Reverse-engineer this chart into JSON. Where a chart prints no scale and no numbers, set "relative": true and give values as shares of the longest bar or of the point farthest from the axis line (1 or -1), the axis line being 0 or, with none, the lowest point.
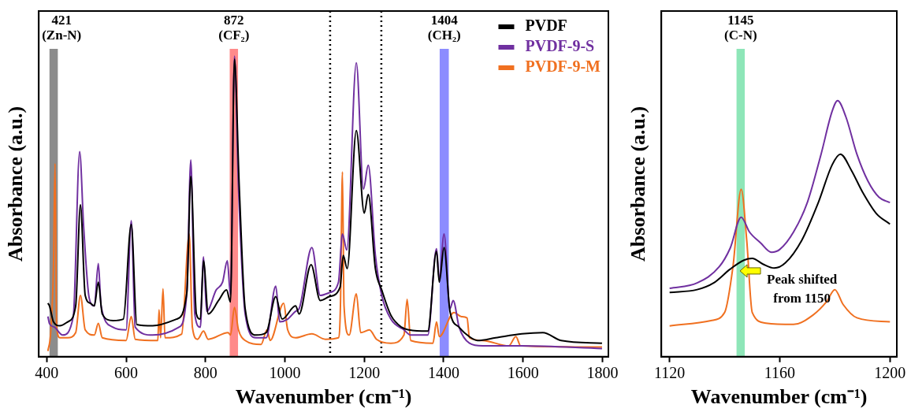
{
  "chart_data": [
    {
      "type": "line",
      "relative": true,
      "xlabel": "Wavenumber (cm⁻¹)",
      "ylabel": "Absorbance (a.u.)",
      "xlim": [
        380,
        1815
      ],
      "xticks": [
        400,
        600,
        800,
        1000,
        1200,
        1400,
        1600,
        1800
      ],
      "legend": "top right",
      "series": [
        {
          "name": "PVDF",
          "color": "#000000",
          "x": [
            403,
            407,
            417,
            433,
            453,
            473,
            485,
            497,
            510,
            520,
            530,
            540,
            567,
            593,
            613,
            627,
            667,
            727,
            753,
            763,
            777,
            787,
            795,
            807,
            833,
            853,
            863,
            873,
            885,
            900,
            927,
            953,
            977,
            993,
            1027,
            1036,
            1066,
            1089,
            1112,
            1139,
            1147,
            1157,
            1180,
            1200,
            1210,
            1228,
            1244,
            1267,
            1294,
            1313,
            1360,
            1382,
            1389,
            1401,
            1416,
            1439,
            1452,
            1485,
            1531,
            1597,
            1650,
            1696,
            1799
          ],
          "values": [
            0.178,
            0.169,
            0.116,
            0.103,
            0.116,
            0.169,
            0.505,
            0.204,
            0.178,
            0.169,
            0.248,
            0.142,
            0.12,
            0.125,
            0.44,
            0.107,
            0.103,
            0.125,
            0.213,
            0.6,
            0.142,
            0.125,
            0.319,
            0.142,
            0.187,
            0.222,
            0.182,
            0.99,
            0.567,
            0.159,
            0.072,
            0.08,
            0.2,
            0.125,
            0.169,
            0.142,
            0.306,
            0.187,
            0.2,
            0.231,
            0.337,
            0.293,
            0.752,
            0.478,
            0.54,
            0.293,
            0.222,
            0.138,
            0.098,
            0.089,
            0.085,
            0.35,
            0.248,
            0.363,
            0.15,
            0.098,
            0.08,
            0.054,
            0.063,
            0.076,
            0.08,
            0.054,
            0.045
          ]
        },
        {
          "name": "PVDF-9-S",
          "color": "#7030a0",
          "x": [
            403,
            407,
            420,
            440,
            467,
            483,
            493,
            507,
            520,
            530,
            537,
            567,
            600,
            613,
            623,
            667,
            733,
            753,
            763,
            773,
            787,
            795,
            803,
            827,
            843,
            855,
            863,
            873,
            883,
            900,
            927,
            953,
            977,
            987,
            1007,
            1027,
            1036,
            1068,
            1089,
            1112,
            1135,
            1145,
            1156,
            1180,
            1198,
            1210,
            1228,
            1244,
            1267,
            1300,
            1317,
            1360,
            1382,
            1389,
            1401,
            1416,
            1424,
            1439,
            1465,
            1498,
            1597,
            1799
          ],
          "values": [
            0.134,
            0.11,
            0.098,
            0.072,
            0.134,
            0.682,
            0.434,
            0.195,
            0.169,
            0.31,
            0.169,
            0.098,
            0.089,
            0.452,
            0.098,
            0.072,
            0.098,
            0.213,
            0.655,
            0.142,
            0.098,
            0.332,
            0.151,
            0.222,
            0.248,
            0.319,
            0.204,
            1.0,
            0.567,
            0.142,
            0.063,
            0.063,
            0.235,
            0.116,
            0.125,
            0.151,
            0.16,
            0.363,
            0.204,
            0.213,
            0.248,
            0.408,
            0.355,
            0.978,
            0.558,
            0.637,
            0.337,
            0.204,
            0.125,
            0.089,
            0.072,
            0.072,
            0.359,
            0.257,
            0.408,
            0.16,
            0.187,
            0.098,
            0.045,
            0.036,
            0.036,
            0.027
          ]
        },
        {
          "name": "PVDF-9-M",
          "color": "#f07020",
          "x": [
            403,
            410,
            417,
            421,
            425,
            433,
            453,
            473,
            485,
            497,
            520,
            530,
            540,
            600,
            613,
            623,
            680,
            683,
            687,
            693,
            698,
            740,
            759,
            767,
            780,
            795,
            807,
            857,
            863,
            873,
            883,
            900,
            940,
            955,
            963,
            997,
            1007,
            1027,
            1068,
            1102,
            1135,
            1140,
            1145,
            1149,
            1162,
            1180,
            1191,
            1213,
            1231,
            1267,
            1300,
            1308,
            1317,
            1373,
            1382,
            1389,
            1426,
            1445,
            1459,
            1465,
            1498,
            1564,
            1582,
            1594,
            1799
          ],
          "values": [
            0.019,
            0.08,
            0.3,
            0.642,
            0.1,
            0.063,
            0.063,
            0.08,
            0.204,
            0.089,
            0.072,
            0.111,
            0.063,
            0.054,
            0.134,
            0.058,
            0.054,
            0.156,
            0.063,
            0.226,
            0.063,
            0.075,
            0.408,
            0.098,
            0.058,
            0.085,
            0.058,
            0.08,
            0.072,
            0.164,
            0.09,
            0.054,
            0.041,
            0.089,
            0.054,
            0.178,
            0.09,
            0.063,
            0.076,
            0.058,
            0.063,
            0.17,
            0.615,
            0.17,
            0.072,
            0.209,
            0.08,
            0.089,
            0.058,
            0.045,
            0.072,
            0.191,
            0.054,
            0.045,
            0.116,
            0.067,
            0.147,
            0.133,
            0.129,
            0.063,
            0.054,
            0.036,
            0.067,
            0.036,
            0.032
          ]
        }
      ],
      "bands": [
        {
          "axis": "x",
          "from": 407,
          "to": 428,
          "label": "421 (Zn-N)",
          "color": "#8c8c8c"
        },
        {
          "axis": "x",
          "from": 861,
          "to": 882,
          "label": "872 (CF₂)",
          "color": "#ff8a8a"
        },
        {
          "axis": "x",
          "from": 1390,
          "to": 1413,
          "label": "1404 (CH₂)",
          "color": "#8c8cff"
        }
      ],
      "ref_lines": [
        {
          "axis": "x",
          "value": 1114,
          "line_style": "dotted",
          "color": "#000000"
        },
        {
          "axis": "x",
          "value": 1243,
          "line_style": "dotted",
          "color": "#000000"
        }
      ]
    },
    {
      "type": "line",
      "relative": true,
      "xlabel": "Wavenumber (cm⁻¹)",
      "ylabel": "Absorbance (a.u.)",
      "xlim": [
        1117,
        1202.5
      ],
      "xticks": [
        1120,
        1160,
        1200
      ],
      "series": [
        {
          "color": "#7030a0",
          "x": [
            1120,
            1130,
            1138,
            1142,
            1146,
            1149,
            1153,
            1157,
            1160,
            1165,
            1170,
            1175,
            1179,
            1181,
            1184,
            1188,
            1192,
            1196,
            1200
          ],
          "values": [
            0.267,
            0.288,
            0.351,
            0.424,
            0.545,
            0.487,
            0.445,
            0.408,
            0.419,
            0.487,
            0.602,
            0.791,
            0.958,
            1.0,
            0.937,
            0.791,
            0.686,
            0.623,
            0.602
          ]
        },
        {
          "color": "#000000",
          "x": [
            1120,
            1130,
            1136,
            1142,
            1147,
            1150,
            1154,
            1158,
            1162,
            1168,
            1174,
            1179,
            1182,
            1186,
            1190,
            1195,
            1200
          ],
          "values": [
            0.251,
            0.262,
            0.288,
            0.342,
            0.377,
            0.384,
            0.361,
            0.346,
            0.366,
            0.455,
            0.602,
            0.749,
            0.791,
            0.728,
            0.644,
            0.56,
            0.518
          ]
        },
        {
          "color": "#f07020",
          "x": [
            1120,
            1135,
            1140,
            1143,
            1146,
            1148,
            1150,
            1155,
            1165,
            1172,
            1177,
            1180,
            1183,
            1188,
            1200
          ],
          "values": [
            0.12,
            0.141,
            0.173,
            0.351,
            0.654,
            0.455,
            0.173,
            0.131,
            0.126,
            0.162,
            0.215,
            0.262,
            0.204,
            0.152,
            0.136
          ]
        }
      ],
      "bands": [
        {
          "axis": "x",
          "from": 1144.3,
          "to": 1147.3,
          "label": "1145 (C-N)",
          "color": "#8ee6b8"
        }
      ],
      "annotations": [
        {
          "text": "Peak shifted from 1150",
          "x": 1145,
          "y": 0.335
        }
      ]
    }
  ]
}
